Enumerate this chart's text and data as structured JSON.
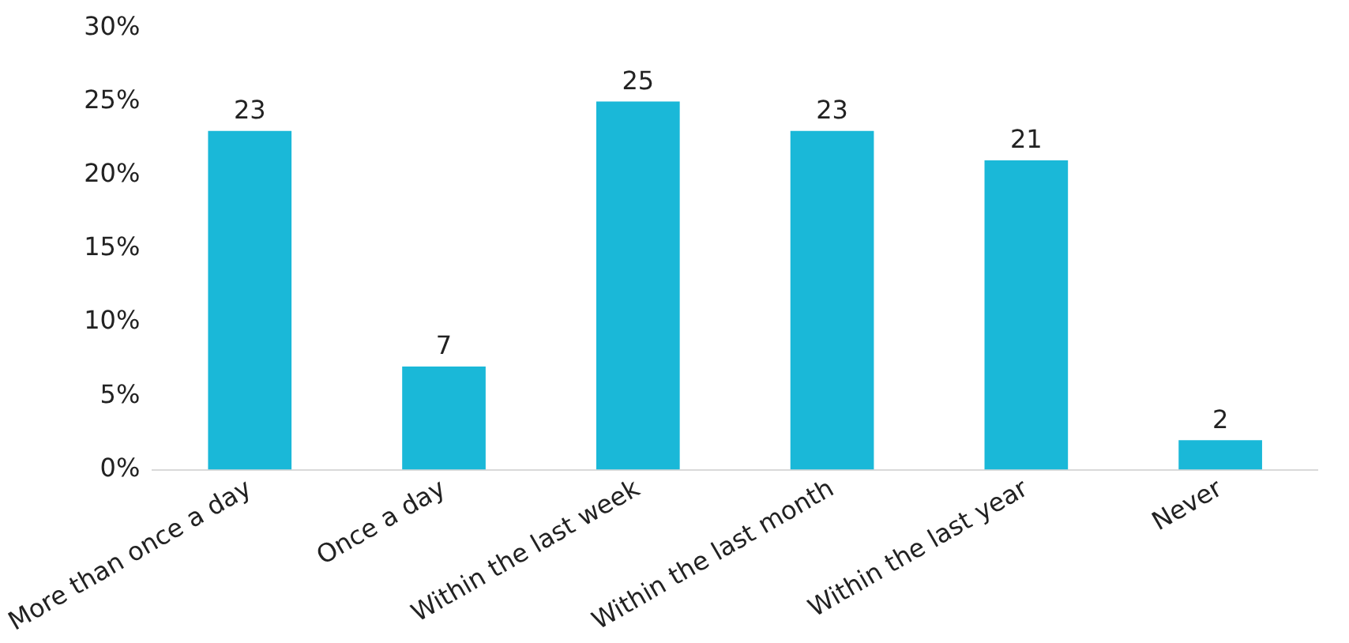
{
  "chart_data": {
    "type": "bar",
    "categories": [
      "More than once a day",
      "Once a day",
      "Within the last week",
      "Within the last month",
      "Within the last year",
      "Never"
    ],
    "values": [
      23,
      7,
      25,
      23,
      21,
      2
    ],
    "color": "#1ab8d8",
    "ylim": [
      0,
      30
    ],
    "yticks": [
      {
        "value": 0,
        "label": "0%"
      },
      {
        "value": 5,
        "label": "5%"
      },
      {
        "value": 10,
        "label": "10%"
      },
      {
        "value": 15,
        "label": "15%"
      },
      {
        "value": 20,
        "label": "20%"
      },
      {
        "value": 25,
        "label": "25%"
      },
      {
        "value": 30,
        "label": "30%"
      }
    ],
    "data_labels": true,
    "grid": false,
    "legend": false
  }
}
